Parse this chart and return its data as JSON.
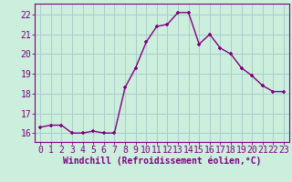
{
  "x": [
    0,
    1,
    2,
    3,
    4,
    5,
    6,
    7,
    8,
    9,
    10,
    11,
    12,
    13,
    14,
    15,
    16,
    17,
    18,
    19,
    20,
    21,
    22,
    23
  ],
  "y": [
    16.3,
    16.4,
    16.4,
    16.0,
    16.0,
    16.1,
    16.0,
    16.0,
    18.3,
    19.3,
    20.6,
    21.4,
    21.5,
    22.1,
    22.1,
    20.5,
    21.0,
    20.3,
    20.0,
    19.3,
    18.9,
    18.4,
    18.1,
    18.1
  ],
  "line_color": "#800080",
  "marker": "+",
  "bg_color": "#cceedd",
  "grid_color": "#aacccc",
  "xlabel": "Windchill (Refroidissement éolien,°C)",
  "ylabel_ticks": [
    16,
    17,
    18,
    19,
    20,
    21,
    22
  ],
  "xlim": [
    -0.5,
    23.5
  ],
  "ylim": [
    15.55,
    22.55
  ],
  "xticks": [
    0,
    1,
    2,
    3,
    4,
    5,
    6,
    7,
    8,
    9,
    10,
    11,
    12,
    13,
    14,
    15,
    16,
    17,
    18,
    19,
    20,
    21,
    22,
    23
  ],
  "label_color": "#800080",
  "tick_color": "#800080",
  "font_size_xlabel": 7.0,
  "font_size_ticks": 7.0,
  "line_width": 1.0,
  "marker_size": 3.5
}
